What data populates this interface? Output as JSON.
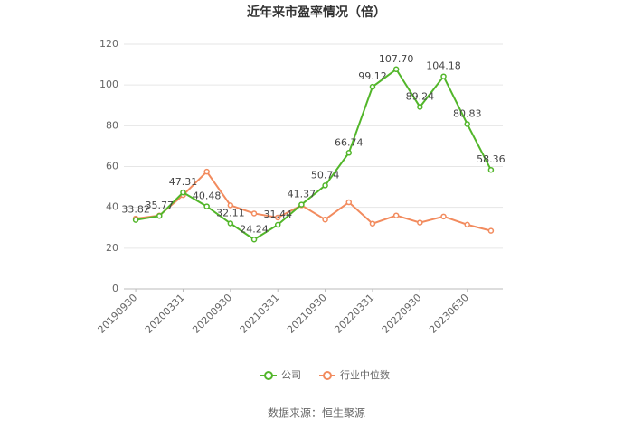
{
  "chart_data": {
    "type": "line",
    "title": "近年来市盈率情况（倍）",
    "categories": [
      "20190930",
      null,
      "20200331",
      null,
      "20200930",
      null,
      "20210331",
      null,
      "20210930",
      null,
      "20220331",
      null,
      "20220930",
      null,
      "20230630",
      null
    ],
    "series": [
      {
        "name": "公司",
        "color": "#52b62a",
        "values": [
          33.82,
          35.77,
          47.31,
          40.48,
          32.11,
          24.24,
          31.44,
          41.37,
          50.74,
          66.74,
          99.12,
          107.7,
          89.24,
          104.18,
          80.83,
          58.36
        ],
        "value_labels": [
          "33.82",
          "35.77",
          "47.31",
          "40.48",
          "32.11",
          "24.24",
          "31.44",
          "41.37",
          "50.74",
          "66.74",
          "99.12",
          "107.70",
          "89.24",
          "104.18",
          "80.83",
          "58.36"
        ]
      },
      {
        "name": "行业中位数",
        "color": "#f28b5e",
        "values": [
          34.5,
          36,
          46,
          57.5,
          41,
          37,
          35,
          41,
          34,
          42.5,
          32,
          36,
          32.5,
          35.5,
          31.5,
          28.5
        ]
      }
    ],
    "ylim": [
      0,
      120
    ],
    "yticks": [
      0,
      20,
      40,
      60,
      80,
      100,
      120
    ],
    "grid": true,
    "legend": "bottom",
    "source": "数据来源：恒生聚源"
  }
}
